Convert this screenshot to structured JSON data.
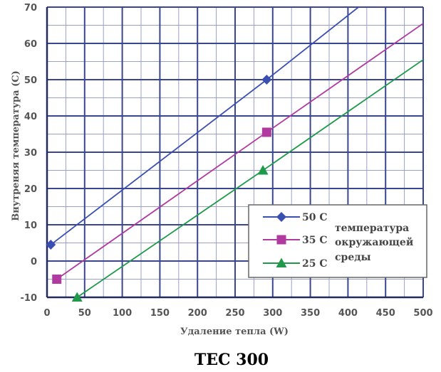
{
  "chart_data": {
    "type": "line",
    "title": "TEC 300",
    "xlabel": "Удаление тепла (W)",
    "ylabel": "Внутреняя температура (C)",
    "xlim": [
      0,
      500
    ],
    "ylim": [
      -10,
      70
    ],
    "x_ticks": [
      "0",
      "50",
      "100",
      "150",
      "200",
      "250",
      "300",
      "350",
      "400",
      "450",
      "500"
    ],
    "y_ticks": [
      "-10",
      "0",
      "10",
      "20",
      "30",
      "40",
      "50",
      "60",
      "70"
    ],
    "grid": true,
    "legend_position": "lower-right",
    "legend_note": [
      "температура",
      "окружающей",
      "среды"
    ],
    "series": [
      {
        "name": "50 C",
        "color": "#3b4fb0",
        "marker": "diamond",
        "line": [
          [
            5,
            4.5
          ],
          [
            292,
            50
          ],
          [
            414,
            70
          ]
        ],
        "markers": [
          [
            5,
            4.5
          ],
          [
            292,
            50
          ]
        ]
      },
      {
        "name": "35 C",
        "color": "#b03aa0",
        "marker": "square",
        "line": [
          [
            13,
            -5
          ],
          [
            292,
            35.5
          ],
          [
            500,
            65.5
          ]
        ],
        "markers": [
          [
            13,
            -5
          ],
          [
            292,
            35.5
          ]
        ]
      },
      {
        "name": "25 C",
        "color": "#1e9a4a",
        "marker": "triangle",
        "line": [
          [
            40,
            -10
          ],
          [
            287,
            25
          ],
          [
            500,
            55.5
          ]
        ],
        "markers": [
          [
            40,
            -10
          ],
          [
            287,
            25
          ]
        ]
      }
    ]
  }
}
